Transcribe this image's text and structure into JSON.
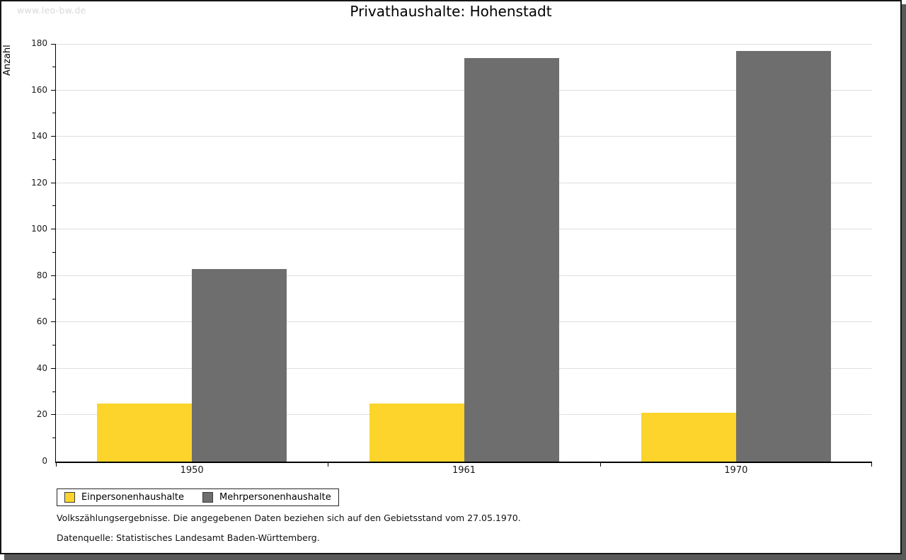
{
  "watermark": "www.leo-bw.de",
  "chart_data": {
    "type": "bar",
    "title": "Privathaushalte: Hohenstadt",
    "ylabel": "Anzahl",
    "xlabel": "",
    "categories": [
      "1950",
      "1961",
      "1970"
    ],
    "series": [
      {
        "name": "Einpersonenhaushalte",
        "color": "#FCD42C",
        "values": [
          25,
          25,
          21
        ]
      },
      {
        "name": "Mehrpersonenhaushalte",
        "color": "#6E6E6E",
        "values": [
          83,
          174,
          177
        ]
      }
    ],
    "ylim": [
      0,
      180
    ],
    "ytick_major": 20,
    "ytick_minor": 10,
    "grid": true,
    "gridline_color": "#DEDEDE",
    "axis_color": "#000000",
    "legend_position": "bottom-left"
  },
  "notes": [
    "Volkszählungsergebnisse. Die angegebenen Daten beziehen sich auf den Gebietsstand vom 27.05.1970.",
    "Datenquelle: Statistisches Landesamt Baden-Württemberg."
  ],
  "frame_colors": {
    "border": "#161616",
    "shadow": "#595959",
    "watermark_text": "#D9D9D9"
  }
}
